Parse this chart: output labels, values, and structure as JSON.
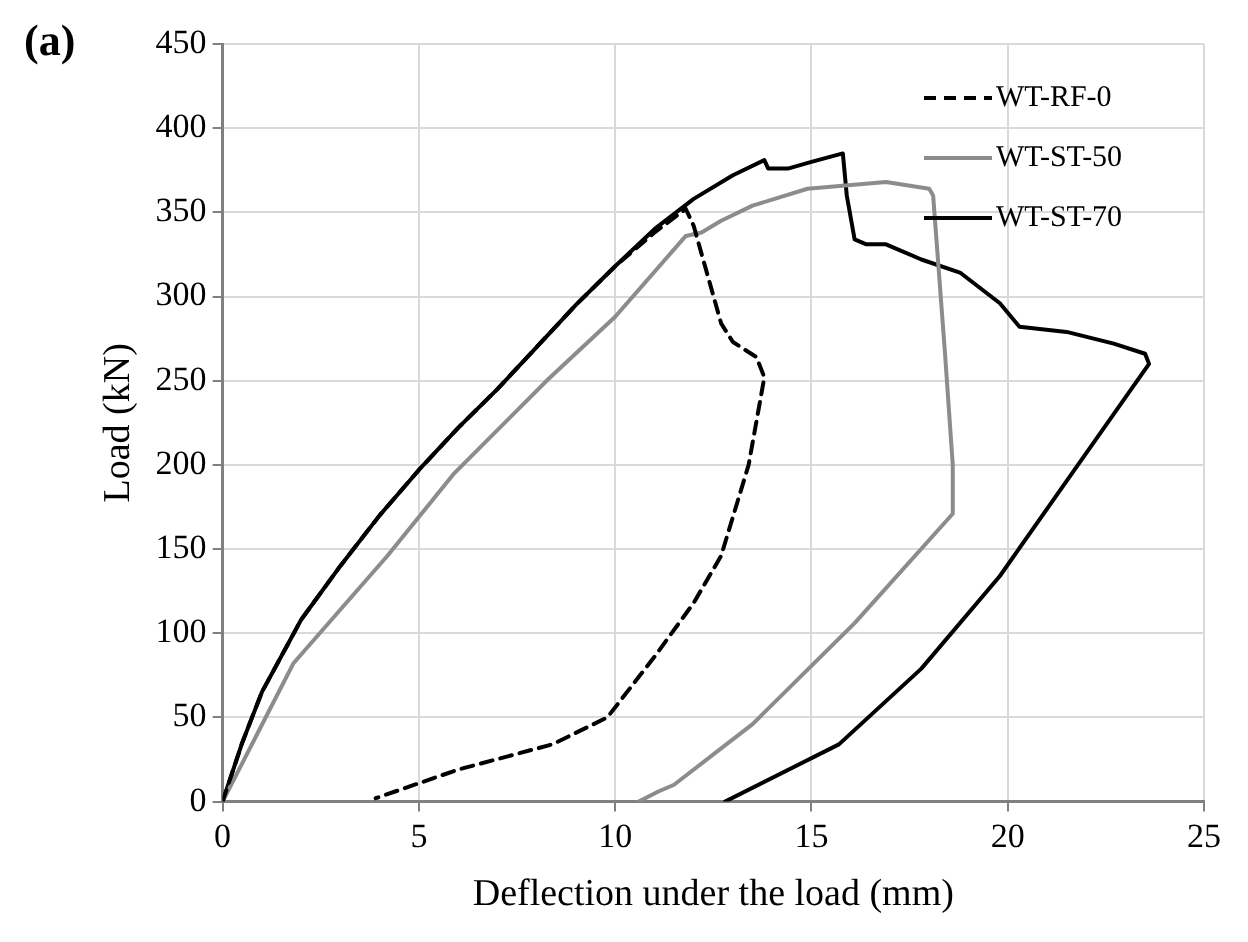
{
  "chart_data": {
    "type": "line",
    "title": "(a)",
    "xlabel": "Deflection under the load (mm)",
    "ylabel": "Load (kN)",
    "xlim": [
      0,
      25
    ],
    "xticks": [
      0,
      5,
      10,
      15,
      20,
      25
    ],
    "ylim": [
      0,
      450
    ],
    "yticks": [
      0,
      50,
      100,
      150,
      200,
      250,
      300,
      350,
      400,
      450
    ],
    "grid": true,
    "legend": "top right",
    "marker": "none",
    "series": [
      {
        "name": "WT-RF-0",
        "color": "#000000",
        "line_style": "dashed",
        "x": [
          0,
          0.5,
          1,
          2,
          3,
          4,
          5,
          6,
          7,
          8,
          9,
          10,
          11,
          11.8,
          12.0,
          12.7,
          13.0,
          13.6,
          13.8,
          13.4,
          12.7,
          12.0,
          11.0,
          9.8,
          8.4,
          6.0,
          3.9
        ],
        "values": [
          0,
          35,
          65,
          108,
          140,
          170,
          197,
          222,
          245,
          270,
          295,
          318,
          338,
          352,
          342,
          284,
          273,
          264,
          252,
          200,
          146,
          118,
          86,
          50,
          34,
          19,
          2
        ]
      },
      {
        "name": "WT-ST-50",
        "color": "#8c8c8c",
        "line_style": "solid",
        "x": [
          0,
          1.8,
          4.2,
          5.9,
          8.3,
          10.0,
          11.8,
          12.2,
          12.7,
          13.5,
          14.9,
          16.9,
          18.0,
          18.1,
          18.4,
          18.6,
          18.6,
          16.1,
          13.5,
          11.5,
          11.1,
          10.6
        ],
        "values": [
          0,
          82,
          146,
          195,
          251,
          288,
          336,
          338,
          345,
          354,
          364,
          368,
          364,
          360,
          267,
          200,
          171,
          106,
          46,
          10,
          6,
          0
        ]
      },
      {
        "name": "WT-ST-70",
        "color": "#000000",
        "line_style": "solid",
        "x": [
          0,
          0.5,
          1,
          2,
          3,
          4,
          5,
          6,
          7,
          8,
          9,
          10,
          11,
          12,
          13,
          13.8,
          13.9,
          14.4,
          15,
          15.8,
          15.9,
          16.1,
          16.4,
          16.9,
          17.8,
          18.8,
          19.8,
          20.3,
          21.5,
          22.7,
          23.5,
          23.6,
          22.0,
          19.8,
          17.8,
          15.7,
          12.8
        ],
        "values": [
          0,
          35,
          65,
          108,
          140,
          170,
          197,
          222,
          245,
          270,
          295,
          318,
          340,
          358,
          372,
          381,
          376,
          376,
          380,
          385,
          360,
          334,
          331,
          331,
          322,
          314,
          296,
          282,
          279,
          272,
          266,
          260,
          207,
          134,
          79,
          34,
          0
        ]
      }
    ]
  }
}
